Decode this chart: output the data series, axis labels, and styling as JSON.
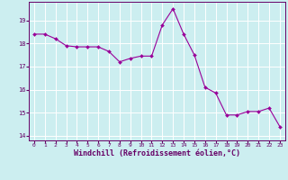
{
  "x": [
    0,
    1,
    2,
    3,
    4,
    5,
    6,
    7,
    8,
    9,
    10,
    11,
    12,
    13,
    14,
    15,
    16,
    17,
    18,
    19,
    20,
    21,
    22,
    23
  ],
  "y": [
    18.4,
    18.4,
    18.2,
    17.9,
    17.85,
    17.85,
    17.85,
    17.65,
    17.2,
    17.35,
    17.45,
    17.45,
    18.8,
    19.5,
    18.4,
    17.5,
    16.1,
    15.85,
    14.9,
    14.9,
    15.05,
    15.05,
    15.2,
    14.4
  ],
  "line_color": "#990099",
  "marker": "D",
  "marker_size": 2.0,
  "bg_color": "#cceef0",
  "grid_color": "#ffffff",
  "xlabel": "Windchill (Refroidissement éolien,°C)",
  "xlabel_color": "#660066",
  "tick_color": "#660066",
  "ylabel_ticks": [
    14,
    15,
    16,
    17,
    18,
    19
  ],
  "xlim": [
    -0.5,
    23.5
  ],
  "ylim": [
    13.8,
    19.8
  ],
  "xticks": [
    0,
    1,
    2,
    3,
    4,
    5,
    6,
    7,
    8,
    9,
    10,
    11,
    12,
    13,
    14,
    15,
    16,
    17,
    18,
    19,
    20,
    21,
    22,
    23
  ],
  "figsize": [
    3.2,
    2.0
  ],
  "dpi": 100
}
